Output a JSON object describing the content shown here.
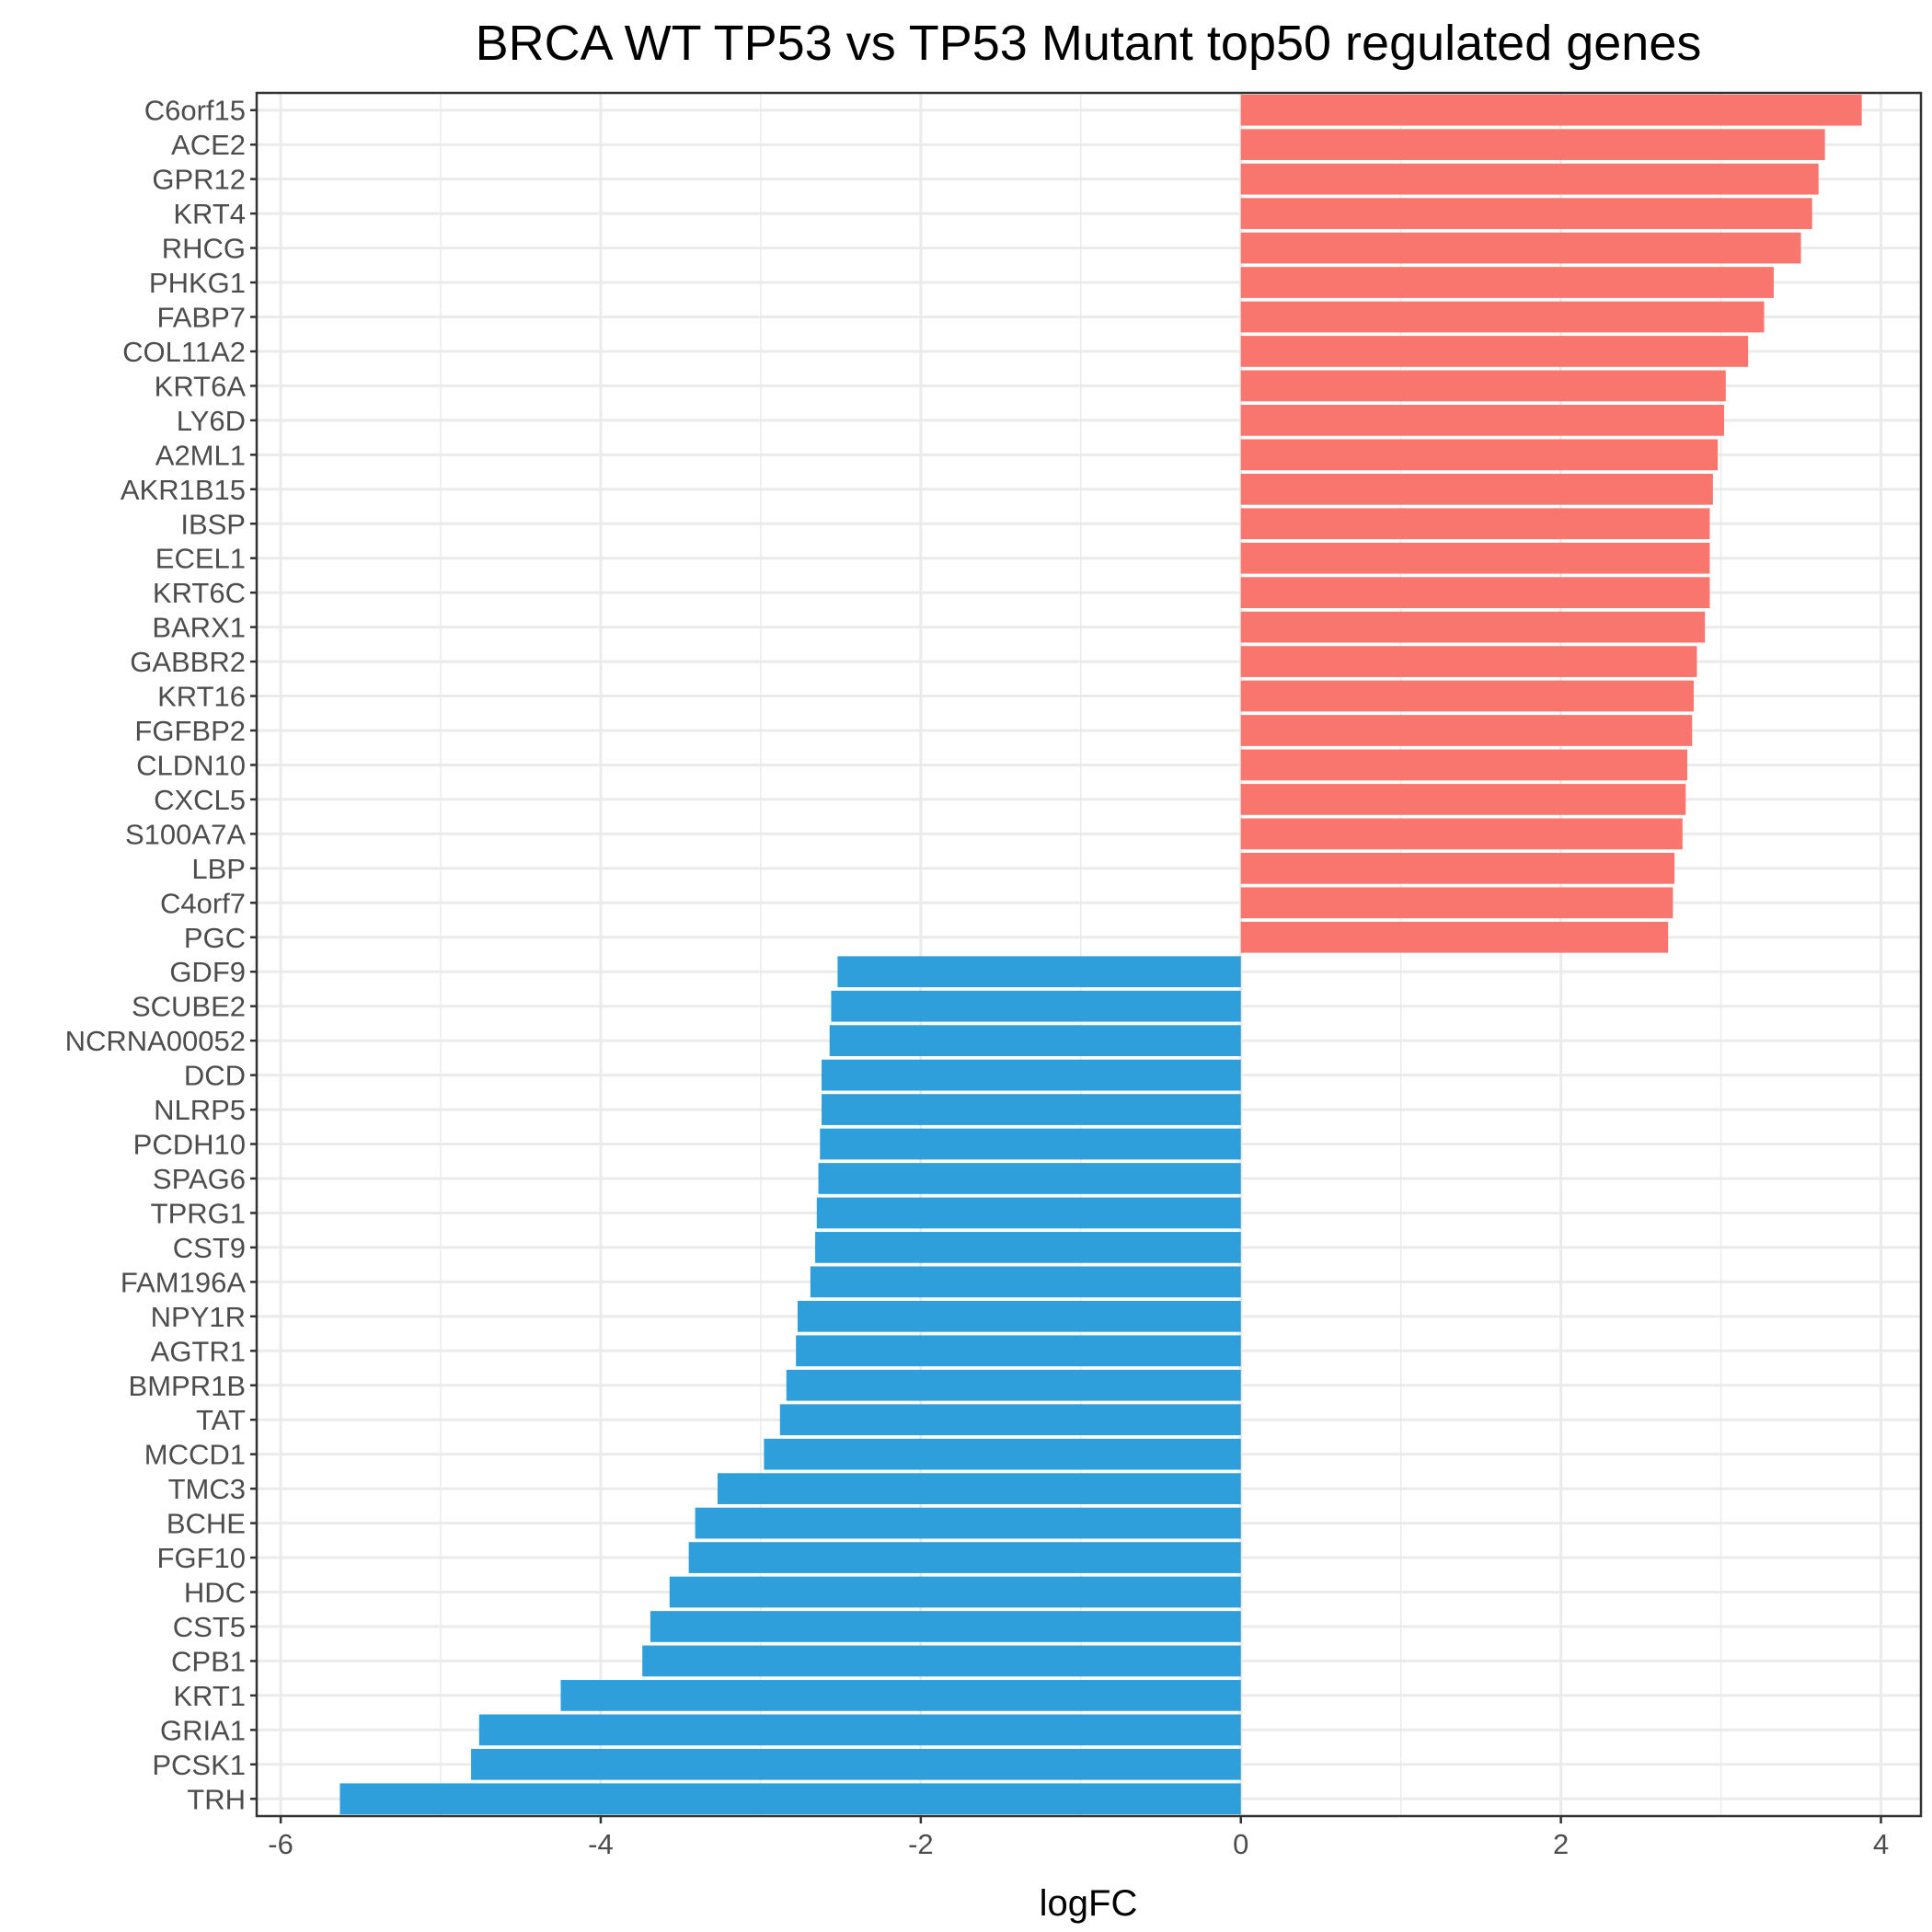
{
  "chart_data": {
    "type": "bar",
    "orientation": "horizontal",
    "title": "BRCA WT TP53 vs TP53 Mutant top50 regulated genes",
    "xlabel": "logFC",
    "ylabel": "",
    "xlim": [
      -6.15,
      4.25
    ],
    "xticks": [
      "-6",
      "-4",
      "-2",
      "0",
      "2",
      "4"
    ],
    "grid": true,
    "legend": "none",
    "colors": {
      "up": "#F8766D",
      "down": "#2E9FDB"
    },
    "categories": [
      "C6orf15",
      "ACE2",
      "GPR12",
      "KRT4",
      "RHCG",
      "PHKG1",
      "FABP7",
      "COL11A2",
      "KRT6A",
      "LY6D",
      "A2ML1",
      "AKR1B15",
      "IBSP",
      "ECEL1",
      "KRT6C",
      "BARX1",
      "GABBR2",
      "KRT16",
      "FGFBP2",
      "CLDN10",
      "CXCL5",
      "S100A7A",
      "LBP",
      "C4orf7",
      "PGC",
      "GDF9",
      "SCUBE2",
      "NCRNA00052",
      "DCD",
      "NLRP5",
      "PCDH10",
      "SPAG6",
      "TPRG1",
      "CST9",
      "FAM196A",
      "NPY1R",
      "AGTR1",
      "BMPR1B",
      "TAT",
      "MCCD1",
      "TMC3",
      "BCHE",
      "FGF10",
      "HDC",
      "CST5",
      "CPB1",
      "KRT1",
      "GRIA1",
      "PCSK1",
      "TRH"
    ],
    "values": [
      3.88,
      3.65,
      3.61,
      3.57,
      3.5,
      3.33,
      3.27,
      3.17,
      3.03,
      3.02,
      2.98,
      2.95,
      2.93,
      2.93,
      2.93,
      2.9,
      2.85,
      2.83,
      2.82,
      2.79,
      2.78,
      2.76,
      2.71,
      2.7,
      2.67,
      -2.52,
      -2.56,
      -2.57,
      -2.62,
      -2.62,
      -2.63,
      -2.64,
      -2.65,
      -2.66,
      -2.69,
      -2.77,
      -2.78,
      -2.84,
      -2.88,
      -2.98,
      -3.27,
      -3.41,
      -3.45,
      -3.57,
      -3.69,
      -3.74,
      -4.25,
      -4.76,
      -4.81,
      -5.63
    ]
  }
}
